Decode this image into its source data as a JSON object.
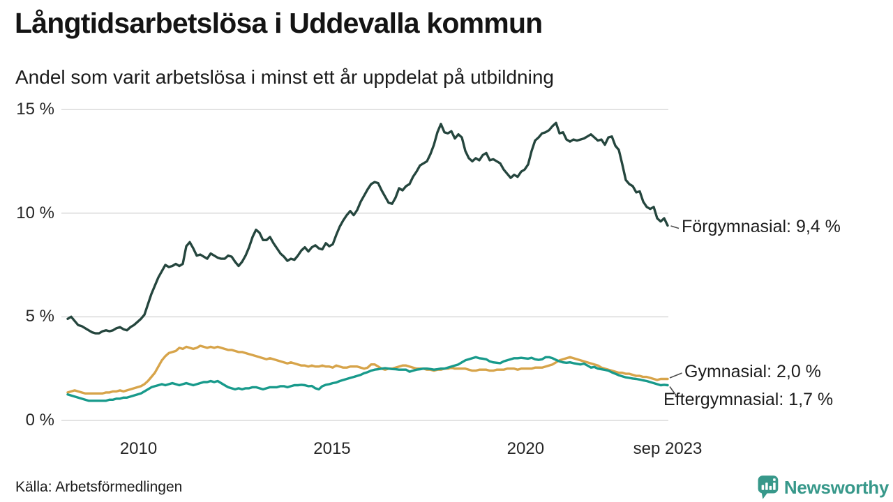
{
  "header": {
    "title": "Långtidsarbetslösa i Uddevalla kommun",
    "subtitle": "Andel som varit arbetslösa i minst ett år uppdelat på utbildning"
  },
  "footer": {
    "source": "Källa: Arbetsförmedlingen",
    "brand_name": "Newsworthy",
    "brand_color": "#37988a",
    "brand_icon": "bar-chart-speech-bubble-icon"
  },
  "colors": {
    "grid": "#e3e3e3",
    "text": "#1b1b1b",
    "tick_text": "#262626",
    "connector": "#4d4d4d"
  },
  "chart_data": {
    "type": "line",
    "title": "Långtidsarbetslösa i Uddevalla kommun",
    "subtitle": "Andel som varit arbetslösa i minst ett år uppdelat på utbildning",
    "unit": "%",
    "grid": true,
    "legend_position": "end-of-line-labels",
    "x_start": 2008.17,
    "x_end": 2023.67,
    "x_axis": {
      "ticks": [
        {
          "label": "2010",
          "year": 2010
        },
        {
          "label": "2015",
          "year": 2015
        },
        {
          "label": "2020",
          "year": 2020
        },
        {
          "label": "sep 2023",
          "year": 2023.67
        }
      ]
    },
    "y_axis": {
      "range": [
        0,
        15.2
      ],
      "ticks": [
        {
          "label": "15 %",
          "value": 15
        },
        {
          "label": "10 %",
          "value": 10
        },
        {
          "label": "5 %",
          "value": 5
        },
        {
          "label": "0 %",
          "value": 0
        }
      ]
    },
    "series": [
      {
        "name": "Förgymnasial",
        "end_label": "Förgymnasial: 9,4 %",
        "end_value_text": "9,4 %",
        "color": "#25463e",
        "values": [
          4.9,
          5.0,
          4.8,
          4.6,
          4.55,
          4.45,
          4.35,
          4.25,
          4.2,
          4.2,
          4.3,
          4.35,
          4.3,
          4.35,
          4.45,
          4.5,
          4.4,
          4.35,
          4.5,
          4.6,
          4.75,
          4.9,
          5.1,
          5.6,
          6.1,
          6.5,
          6.9,
          7.2,
          7.5,
          7.4,
          7.45,
          7.55,
          7.45,
          7.55,
          8.4,
          8.6,
          8.3,
          7.95,
          8.0,
          7.9,
          7.8,
          8.05,
          7.95,
          7.85,
          7.8,
          7.8,
          7.95,
          7.9,
          7.65,
          7.45,
          7.65,
          7.95,
          8.35,
          8.85,
          9.2,
          9.05,
          8.7,
          8.7,
          8.85,
          8.55,
          8.3,
          8.05,
          7.9,
          7.7,
          7.8,
          7.75,
          7.95,
          8.2,
          8.35,
          8.15,
          8.35,
          8.45,
          8.3,
          8.25,
          8.55,
          8.4,
          8.5,
          8.95,
          9.35,
          9.65,
          9.9,
          10.1,
          9.9,
          10.15,
          10.55,
          10.85,
          11.15,
          11.4,
          11.5,
          11.45,
          11.1,
          10.8,
          10.5,
          10.45,
          10.75,
          11.2,
          11.1,
          11.3,
          11.4,
          11.75,
          12.0,
          12.3,
          12.4,
          12.5,
          12.85,
          13.3,
          13.9,
          14.3,
          13.9,
          13.85,
          13.95,
          13.6,
          13.8,
          13.65,
          13.0,
          12.65,
          12.5,
          12.65,
          12.55,
          12.8,
          12.9,
          12.55,
          12.6,
          12.5,
          12.4,
          12.1,
          11.9,
          11.7,
          11.85,
          11.75,
          12.0,
          12.1,
          12.35,
          13.0,
          13.5,
          13.65,
          13.85,
          13.9,
          14.0,
          14.2,
          14.35,
          13.85,
          13.9,
          13.55,
          13.45,
          13.55,
          13.5,
          13.55,
          13.6,
          13.7,
          13.8,
          13.65,
          13.5,
          13.55,
          13.3,
          13.65,
          13.7,
          13.25,
          13.05,
          12.35,
          11.6,
          11.4,
          11.3,
          11.0,
          11.05,
          10.55,
          10.3,
          10.2,
          10.3,
          9.75,
          9.6,
          9.75,
          9.4
        ]
      },
      {
        "name": "Gymnasial",
        "end_label": "Gymnasial: 2,0 %",
        "end_value_text": "2,0 %",
        "color": "#d7a44a",
        "values": [
          1.35,
          1.4,
          1.45,
          1.4,
          1.35,
          1.3,
          1.3,
          1.3,
          1.3,
          1.3,
          1.3,
          1.35,
          1.35,
          1.4,
          1.4,
          1.45,
          1.4,
          1.45,
          1.5,
          1.55,
          1.6,
          1.65,
          1.75,
          1.9,
          2.1,
          2.3,
          2.6,
          2.9,
          3.1,
          3.25,
          3.3,
          3.35,
          3.5,
          3.45,
          3.55,
          3.5,
          3.45,
          3.5,
          3.6,
          3.55,
          3.5,
          3.55,
          3.5,
          3.55,
          3.5,
          3.45,
          3.4,
          3.4,
          3.35,
          3.3,
          3.3,
          3.25,
          3.2,
          3.15,
          3.1,
          3.05,
          3.0,
          2.95,
          3.0,
          2.95,
          2.9,
          2.85,
          2.8,
          2.75,
          2.8,
          2.75,
          2.7,
          2.65,
          2.65,
          2.6,
          2.65,
          2.6,
          2.6,
          2.65,
          2.6,
          2.6,
          2.55,
          2.65,
          2.6,
          2.55,
          2.55,
          2.6,
          2.6,
          2.6,
          2.55,
          2.5,
          2.55,
          2.7,
          2.7,
          2.6,
          2.5,
          2.45,
          2.5,
          2.5,
          2.55,
          2.6,
          2.65,
          2.65,
          2.6,
          2.55,
          2.5,
          2.5,
          2.5,
          2.45,
          2.45,
          2.4,
          2.45,
          2.45,
          2.5,
          2.5,
          2.55,
          2.5,
          2.5,
          2.5,
          2.5,
          2.45,
          2.4,
          2.4,
          2.45,
          2.45,
          2.45,
          2.4,
          2.4,
          2.45,
          2.45,
          2.45,
          2.5,
          2.5,
          2.5,
          2.45,
          2.5,
          2.5,
          2.5,
          2.5,
          2.55,
          2.55,
          2.55,
          2.6,
          2.65,
          2.7,
          2.8,
          2.9,
          2.95,
          3.0,
          3.05,
          3.0,
          2.95,
          2.9,
          2.85,
          2.8,
          2.75,
          2.7,
          2.65,
          2.55,
          2.5,
          2.45,
          2.4,
          2.35,
          2.3,
          2.3,
          2.25,
          2.25,
          2.2,
          2.15,
          2.15,
          2.1,
          2.1,
          2.05,
          2.0,
          1.95,
          2.0,
          2.0,
          2.0
        ]
      },
      {
        "name": "Eftergymnasial",
        "end_label": "Eftergymnasial: 1,7 %",
        "end_value_text": "1,7 %",
        "color": "#189a8b",
        "values": [
          1.25,
          1.2,
          1.15,
          1.1,
          1.05,
          1.0,
          0.95,
          0.95,
          0.95,
          0.95,
          0.95,
          0.95,
          1.0,
          1.0,
          1.05,
          1.05,
          1.1,
          1.1,
          1.15,
          1.2,
          1.25,
          1.3,
          1.4,
          1.5,
          1.6,
          1.65,
          1.7,
          1.75,
          1.7,
          1.75,
          1.8,
          1.75,
          1.7,
          1.75,
          1.8,
          1.75,
          1.7,
          1.75,
          1.8,
          1.85,
          1.85,
          1.9,
          1.85,
          1.9,
          1.8,
          1.7,
          1.6,
          1.55,
          1.5,
          1.55,
          1.5,
          1.55,
          1.55,
          1.6,
          1.6,
          1.55,
          1.5,
          1.55,
          1.6,
          1.6,
          1.6,
          1.65,
          1.65,
          1.6,
          1.65,
          1.7,
          1.7,
          1.72,
          1.7,
          1.65,
          1.66,
          1.55,
          1.5,
          1.65,
          1.72,
          1.75,
          1.8,
          1.83,
          1.9,
          1.95,
          2.0,
          2.05,
          2.1,
          2.15,
          2.2,
          2.28,
          2.33,
          2.4,
          2.45,
          2.47,
          2.5,
          2.52,
          2.5,
          2.48,
          2.47,
          2.45,
          2.45,
          2.45,
          2.35,
          2.4,
          2.45,
          2.47,
          2.5,
          2.5,
          2.48,
          2.45,
          2.47,
          2.5,
          2.5,
          2.55,
          2.6,
          2.65,
          2.7,
          2.8,
          2.9,
          2.95,
          3.0,
          3.05,
          3.0,
          2.98,
          2.95,
          2.85,
          2.8,
          2.78,
          2.76,
          2.85,
          2.9,
          2.95,
          3.0,
          3.0,
          3.02,
          3.0,
          2.98,
          3.02,
          2.95,
          2.92,
          2.95,
          3.05,
          3.05,
          3.0,
          2.92,
          2.85,
          2.8,
          2.78,
          2.8,
          2.76,
          2.73,
          2.7,
          2.74,
          2.65,
          2.55,
          2.58,
          2.5,
          2.47,
          2.44,
          2.4,
          2.32,
          2.25,
          2.18,
          2.13,
          2.08,
          2.05,
          2.02,
          2.0,
          1.97,
          1.93,
          1.9,
          1.85,
          1.8,
          1.75,
          1.7,
          1.72,
          1.7
        ]
      }
    ]
  }
}
